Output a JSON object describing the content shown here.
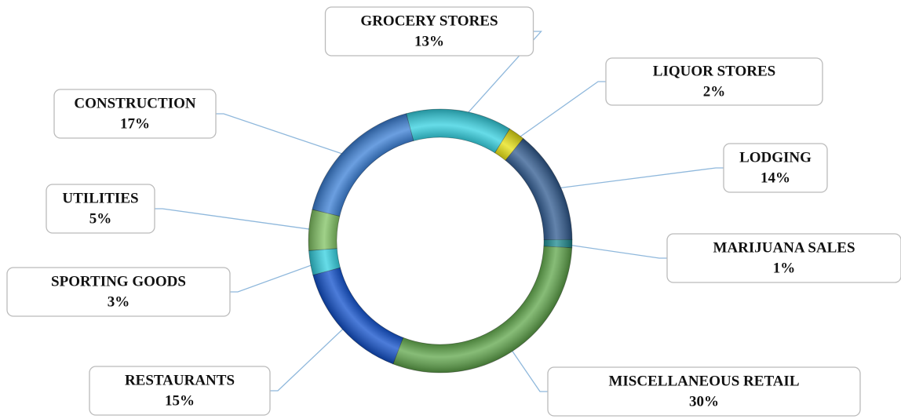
{
  "chart_data": {
    "type": "donut",
    "categories": [
      "GROCERY STORES",
      "LIQUOR STORES",
      "LODGING",
      "MARIJUANA SALES",
      "MISCELLANEOUS RETAIL",
      "RESTAURANTS",
      "SPORTING GOODS",
      "UTILITIES",
      "CONSTRUCTION"
    ],
    "values": [
      13,
      2,
      14,
      1,
      30,
      15,
      3,
      5,
      17
    ],
    "value_labels": [
      "13%",
      "2%",
      "14%",
      "1%",
      "30%",
      "15%",
      "3%",
      "5%",
      "17%"
    ],
    "colors": [
      "#33d0e0",
      "#e6e010",
      "#2f5a90",
      "#1b8a8f",
      "#5fa64a",
      "#1050cc",
      "#33d0e0",
      "#80c262",
      "#3a7fd6"
    ]
  }
}
